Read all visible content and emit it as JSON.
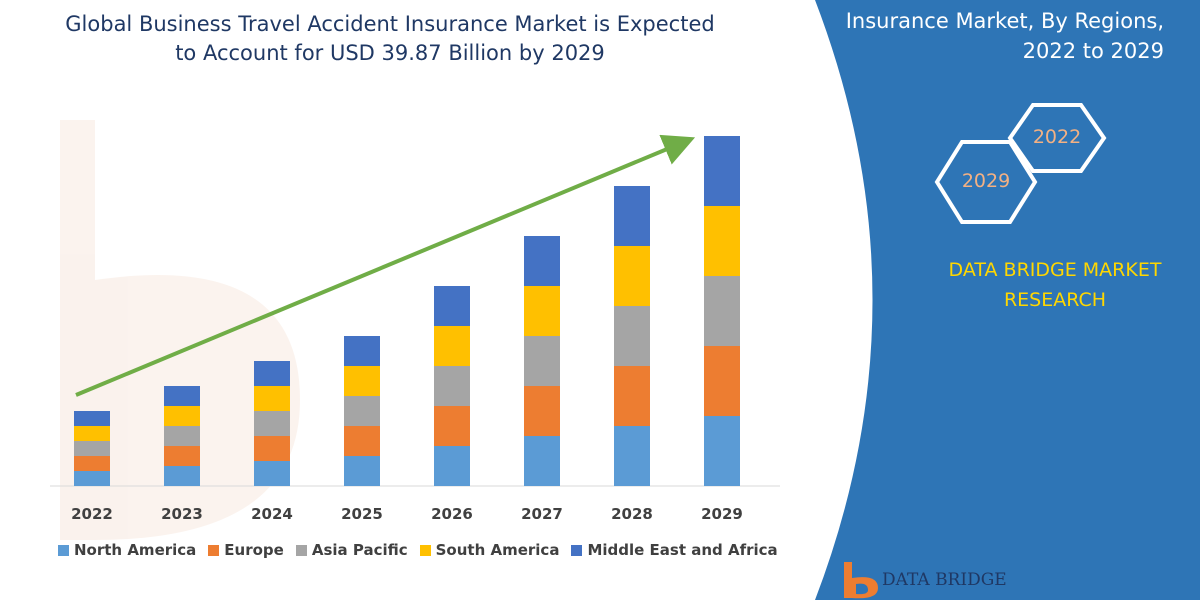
{
  "chart_data": {
    "type": "bar",
    "stacked": true,
    "title_lines": [
      "Global Business Travel Accident Insurance Market is Expected",
      "to Account for USD 39.87 Billion by 2029"
    ],
    "categories": [
      "2022",
      "2023",
      "2024",
      "2025",
      "2026",
      "2027",
      "2028",
      "2029"
    ],
    "series": [
      {
        "name": "North America",
        "color": "#5b9bd5",
        "values": [
          15,
          20,
          25,
          30,
          40,
          50,
          60,
          70
        ]
      },
      {
        "name": "Europe",
        "color": "#ed7d31",
        "values": [
          15,
          20,
          25,
          30,
          40,
          50,
          60,
          70
        ]
      },
      {
        "name": "Asia Pacific",
        "color": "#a5a5a5",
        "values": [
          15,
          20,
          25,
          30,
          40,
          50,
          60,
          70
        ]
      },
      {
        "name": "South America",
        "color": "#ffc000",
        "values": [
          15,
          20,
          25,
          30,
          40,
          50,
          60,
          70
        ]
      },
      {
        "name": "Middle East and Africa",
        "color": "#4472c4",
        "values": [
          15,
          20,
          25,
          30,
          40,
          50,
          60,
          70
        ]
      }
    ],
    "ylim": [
      0,
      350
    ],
    "grid": false,
    "legend_position": "bottom",
    "trend_arrow_color": "#70ad47"
  },
  "panel": {
    "title_lines": [
      "Insurance Market, By Regions,",
      "2022 to 2029"
    ],
    "hexagon_years": [
      "2022",
      "2029"
    ],
    "brand_lines": [
      "DATA BRIDGE MARKET",
      "RESEARCH"
    ],
    "background_color": "#2e75b6",
    "brand_color": "#ffd700"
  },
  "footer_logo": {
    "text": "DATA BRIDGE"
  }
}
